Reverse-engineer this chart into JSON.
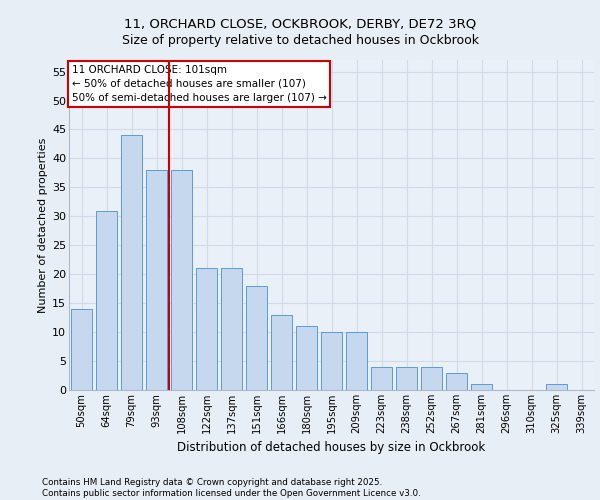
{
  "title_line1": "11, ORCHARD CLOSE, OCKBROOK, DERBY, DE72 3RQ",
  "title_line2": "Size of property relative to detached houses in Ockbrook",
  "xlabel": "Distribution of detached houses by size in Ockbrook",
  "ylabel": "Number of detached properties",
  "categories": [
    "50sqm",
    "64sqm",
    "79sqm",
    "93sqm",
    "108sqm",
    "122sqm",
    "137sqm",
    "151sqm",
    "166sqm",
    "180sqm",
    "195sqm",
    "209sqm",
    "223sqm",
    "238sqm",
    "252sqm",
    "267sqm",
    "281sqm",
    "296sqm",
    "310sqm",
    "325sqm",
    "339sqm"
  ],
  "values": [
    14,
    31,
    44,
    38,
    38,
    21,
    21,
    18,
    13,
    11,
    10,
    10,
    4,
    4,
    4,
    3,
    1,
    0,
    0,
    1,
    0
  ],
  "bar_color": "#c5d8ed",
  "bar_edge_color": "#5b9bd5",
  "vline_x": 3.5,
  "vline_color": "#cc0000",
  "annotation_title": "11 ORCHARD CLOSE: 101sqm",
  "annotation_line1": "← 50% of detached houses are smaller (107)",
  "annotation_line2": "50% of semi-detached houses are larger (107) →",
  "annotation_box_color": "#ffffff",
  "annotation_box_edge": "#cc0000",
  "ylim": [
    0,
    57
  ],
  "yticks": [
    0,
    5,
    10,
    15,
    20,
    25,
    30,
    35,
    40,
    45,
    50,
    55
  ],
  "footer": "Contains HM Land Registry data © Crown copyright and database right 2025.\nContains public sector information licensed under the Open Government Licence v3.0.",
  "bg_color": "#e8eef5",
  "plot_bg_color": "#eaf0f7",
  "grid_color": "#d0dae8"
}
